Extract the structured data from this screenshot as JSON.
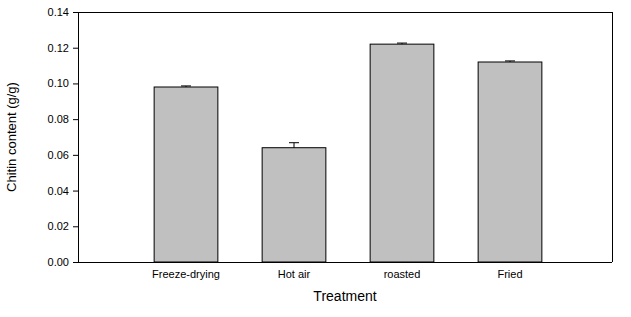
{
  "chart_data": {
    "type": "bar",
    "categories": [
      "Freeze-drying",
      "Hot air",
      "roasted",
      "Fried"
    ],
    "values": [
      0.098,
      0.064,
      0.122,
      0.112
    ],
    "errors": [
      0.0006,
      0.0028,
      0.0006,
      0.0006
    ],
    "color": "#c0c0c0",
    "x_label": "Treatment",
    "y_label": "Chitin content (g/g)",
    "ylim": [
      0,
      0.14
    ],
    "yticks": [
      {
        "value": 0,
        "label": "0.00"
      },
      {
        "value": 0.02,
        "label": "0.02"
      },
      {
        "value": 0.04,
        "label": "0.04"
      },
      {
        "value": 0.06,
        "label": "0.06"
      },
      {
        "value": 0.08,
        "label": "0.08"
      },
      {
        "value": 0.1,
        "label": "0.10"
      },
      {
        "value": 0.12,
        "label": "0.12"
      },
      {
        "value": 0.14,
        "label": "0.14"
      }
    ],
    "grid": false
  }
}
